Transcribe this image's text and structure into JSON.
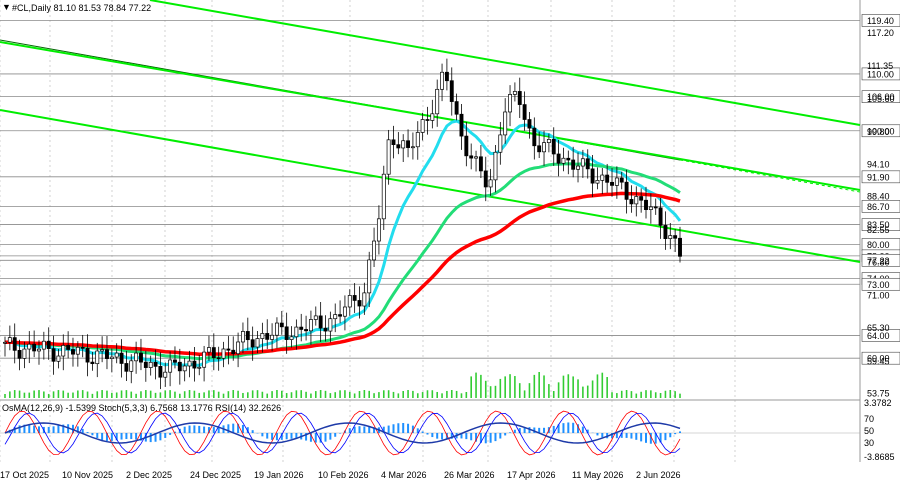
{
  "chart_header": {
    "symbol_text": "#CL,Daily  81.10 81.53 78.84 77.22",
    "expand_arrow": "▼"
  },
  "indicator_header": {
    "text": "OsMA(12,26,9) -1.5399  Stoch(5,3,3) 6.7568 13.1776  RSI(14) 32.2626"
  },
  "chart_data": {
    "type": "candlestick",
    "symbol": "#CL",
    "timeframe": "Daily",
    "ohlc_last": {
      "open": 81.1,
      "high": 81.53,
      "low": 78.84,
      "close": 77.22
    },
    "price_axis_ticks": [
      "117.20",
      "111.35",
      "105.60",
      "99.80",
      "94.10",
      "88.40",
      "82.55",
      "76.80",
      "71.00",
      "65.30",
      "59.45",
      "53.75"
    ],
    "price_axis_values": [
      117.2,
      111.35,
      105.6,
      99.8,
      94.1,
      88.4,
      82.55,
      76.8,
      71.0,
      65.3,
      59.45,
      53.75
    ],
    "price_level_boxes": [
      "119.40",
      "110.00",
      "106.00",
      "100.00",
      "91.90",
      "86.70",
      "83.50",
      "80.00",
      "78.00",
      "77.22",
      "74.00",
      "73.00",
      "64.00",
      "60.00"
    ],
    "price_level_values": [
      119.4,
      110.0,
      106.0,
      100.0,
      91.9,
      86.7,
      83.5,
      80.0,
      78.0,
      77.22,
      74.0,
      73.0,
      64.0,
      60.0
    ],
    "time_axis_labels": [
      "17 Oct 2025",
      "10 Nov 2025",
      "2 Dec 2025",
      "24 Dec 2025",
      "19 Jan 2026",
      "10 Feb 2026",
      "4 Mar 2026",
      "26 Mar 2026",
      "17 Apr 2026",
      "11 May 2026",
      "2 Jun 2026"
    ],
    "indicator_axis_ticks": [
      "3.3782",
      "70",
      "50",
      "30",
      "-3.8685"
    ],
    "ylim": [
      53.0,
      123.0
    ],
    "colors": {
      "channel_lines": "#00ee00",
      "ema_red": "#ff0000",
      "ema_green": "#22dd77",
      "ema_cyan": "#22ddee",
      "candles": "#000000",
      "volume": "#33cc33",
      "osma": "#1e90ff",
      "stoch_main": "#ff0000",
      "stoch_signal": "#0000ff",
      "rsi": "#1e3aa8"
    }
  }
}
